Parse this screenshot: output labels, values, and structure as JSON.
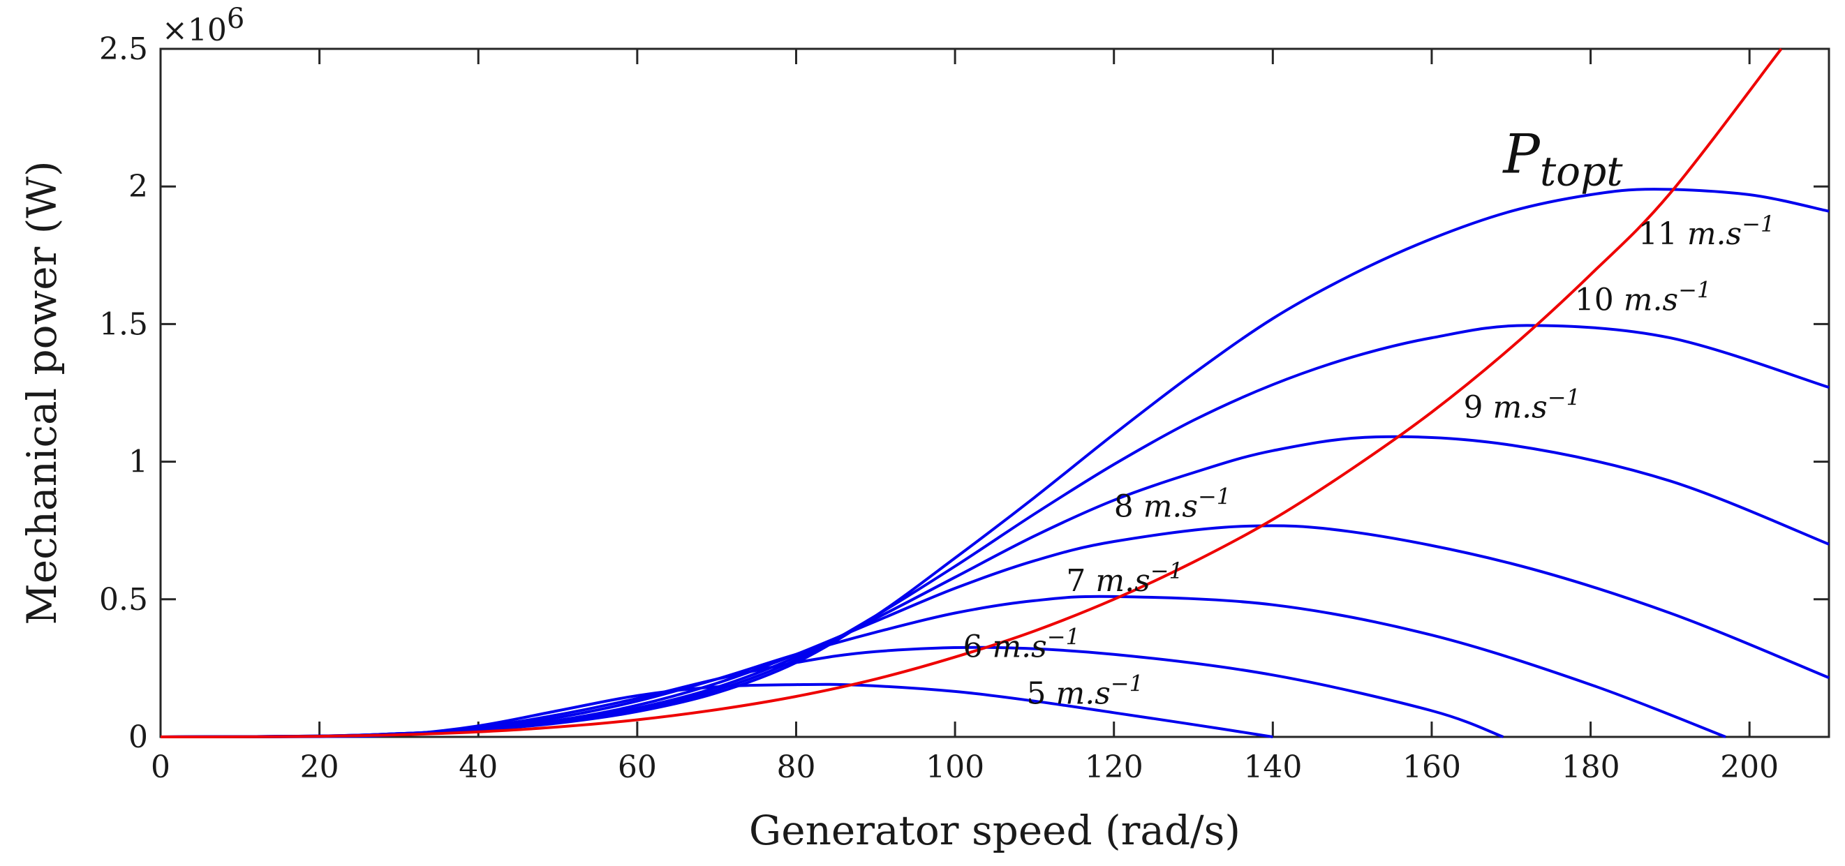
{
  "chart_data": {
    "type": "line",
    "title": "",
    "xlabel": "Generator speed (rad/s)",
    "ylabel": "Mechanical power (W)",
    "xlim": [
      0,
      210
    ],
    "ylim": [
      0,
      2500000
    ],
    "y_multiplier_base": "×10",
    "y_multiplier_exponent": "6",
    "grid": false,
    "x_ticks": [
      "0",
      "20",
      "40",
      "60",
      "80",
      "100",
      "120",
      "140",
      "160",
      "180",
      "200"
    ],
    "y_ticks": [
      "0",
      "0.5",
      "1",
      "1.5",
      "2",
      "2.5"
    ],
    "series": [
      {
        "name": "5 m.s^-1",
        "label_value": "5",
        "label_unit": "m.s",
        "label_exp": "−1",
        "color": "#0000ee",
        "x": [
          0,
          20,
          30,
          40,
          50,
          60,
          70,
          80,
          88,
          100,
          110,
          120,
          130,
          140
        ],
        "y": [
          0,
          1000,
          8000,
          40000,
          95000,
          150000,
          182000,
          190000,
          188000,
          165000,
          130000,
          88000,
          45000,
          0
        ]
      },
      {
        "name": "6 m.s^-1",
        "label_value": "6",
        "label_unit": "m.s",
        "label_exp": "−1",
        "color": "#0000ee",
        "x": [
          0,
          20,
          30,
          40,
          50,
          60,
          70,
          80,
          90,
          104,
          120,
          140,
          160,
          169
        ],
        "y": [
          0,
          1500,
          9000,
          35000,
          80000,
          140000,
          210000,
          270000,
          310000,
          325000,
          300000,
          225000,
          95000,
          0
        ]
      },
      {
        "name": "7 m.s^-1",
        "label_value": "7",
        "label_unit": "m.s",
        "label_exp": "−1",
        "color": "#0000ee",
        "x": [
          0,
          20,
          30,
          40,
          50,
          60,
          70,
          80,
          90,
          100,
          110,
          120,
          140,
          160,
          180,
          197
        ],
        "y": [
          0,
          2000,
          10000,
          30000,
          70000,
          130000,
          210000,
          300000,
          380000,
          450000,
          495000,
          510000,
          480000,
          370000,
          190000,
          0
        ]
      },
      {
        "name": "8 m.s^-1",
        "label_value": "8",
        "label_unit": "m.s",
        "label_exp": "−1",
        "color": "#0000ee",
        "x": [
          0,
          20,
          30,
          40,
          50,
          60,
          70,
          80,
          90,
          100,
          110,
          120,
          136,
          150,
          170,
          190,
          210
        ],
        "y": [
          0,
          2500,
          11000,
          28000,
          60000,
          115000,
          195000,
          300000,
          420000,
          540000,
          640000,
          710000,
          765000,
          745000,
          630000,
          450000,
          215000
        ]
      },
      {
        "name": "9 m.s^-1",
        "label_value": "9",
        "label_unit": "m.s",
        "label_exp": "−1",
        "color": "#0000ee",
        "x": [
          0,
          20,
          30,
          40,
          50,
          60,
          70,
          80,
          90,
          100,
          110,
          120,
          130,
          140,
          153,
          170,
          190,
          210
        ],
        "y": [
          0,
          3000,
          12000,
          27000,
          55000,
          105000,
          180000,
          290000,
          430000,
          580000,
          730000,
          860000,
          960000,
          1040000,
          1090000,
          1060000,
          930000,
          700000
        ]
      },
      {
        "name": "10 m.s^-1",
        "label_value": "10",
        "label_unit": "m.s",
        "label_exp": "−1",
        "color": "#0000ee",
        "x": [
          0,
          20,
          30,
          40,
          50,
          60,
          70,
          80,
          90,
          100,
          110,
          120,
          130,
          140,
          150,
          160,
          172,
          190,
          210
        ],
        "y": [
          0,
          3000,
          12000,
          26000,
          52000,
          98000,
          170000,
          280000,
          440000,
          620000,
          810000,
          990000,
          1150000,
          1280000,
          1380000,
          1450000,
          1495000,
          1450000,
          1270000
        ]
      },
      {
        "name": "11 m.s^-1",
        "label_value": "11",
        "label_unit": "m.s",
        "label_exp": "−1",
        "color": "#0000ee",
        "x": [
          0,
          20,
          30,
          40,
          50,
          60,
          70,
          80,
          90,
          100,
          110,
          120,
          130,
          140,
          150,
          160,
          170,
          180,
          188,
          200,
          210
        ],
        "y": [
          0,
          3000,
          12000,
          25000,
          50000,
          92000,
          160000,
          270000,
          440000,
          650000,
          870000,
          1100000,
          1320000,
          1520000,
          1680000,
          1810000,
          1910000,
          1970000,
          1990000,
          1970000,
          1910000
        ]
      },
      {
        "name": "P_topt",
        "label_base": "P",
        "label_sub": "topt",
        "color": "#ee0000",
        "x": [
          0,
          10,
          20,
          30,
          40,
          50,
          60,
          70,
          80,
          90,
          100,
          110,
          120,
          130,
          140,
          150,
          160,
          170,
          180,
          190,
          204
        ],
        "y": [
          0,
          300,
          2300,
          7800,
          18500,
          36000,
          62000,
          99000,
          147000,
          210000,
          290000,
          385000,
          500000,
          635000,
          790000,
          975000,
          1180000,
          1415000,
          1680000,
          1975000,
          2500000
        ]
      }
    ]
  }
}
